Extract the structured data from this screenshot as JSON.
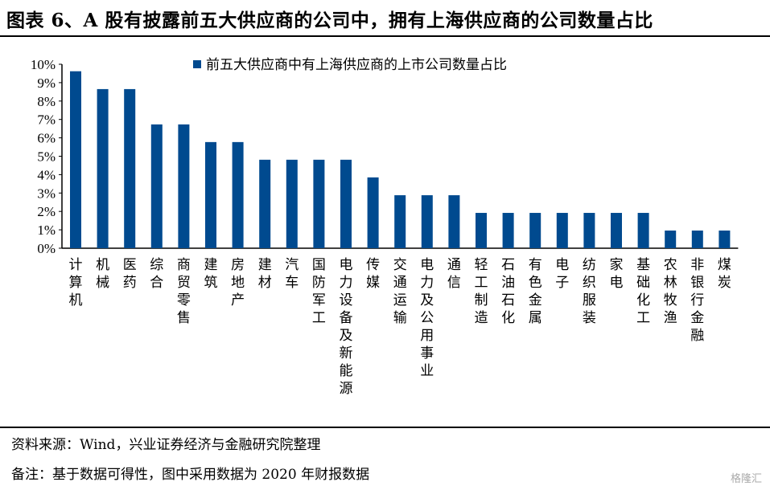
{
  "title": "图表 6、A 股有披露前五大供应商的公司中，拥有上海供应商的公司数量占比",
  "source": "资料来源：Wind，兴业证券经济与金融研究院整理",
  "note": "备注：基于数据可得性，图中采用数据为 2020 年财报数据",
  "watermark": "格隆汇",
  "chart_data": {
    "type": "bar",
    "title": "",
    "xlabel": "",
    "ylabel": "",
    "ylim": [
      0,
      10
    ],
    "yticks": [
      "0%",
      "1%",
      "2%",
      "3%",
      "4%",
      "5%",
      "6%",
      "7%",
      "8%",
      "9%",
      "10%"
    ],
    "grid": false,
    "legend_position": "top",
    "color": "#004a8f",
    "categories": [
      "计算机",
      "机械",
      "医药",
      "综合",
      "商贸零售",
      "建筑",
      "房地产",
      "建材",
      "汽车",
      "国防军工",
      "电力设备及新能源",
      "传媒",
      "交通运输",
      "电力及公用事业",
      "通信",
      "轻工制造",
      "石油石化",
      "有色金属",
      "电子",
      "纺织服装",
      "家电",
      "基础化工",
      "农林牧渔",
      "非银行金融",
      "煤炭"
    ],
    "series": [
      {
        "name": "前五大供应商中有上海供应商的上市公司数量占比",
        "values": [
          9.62,
          8.65,
          8.65,
          6.73,
          6.73,
          5.77,
          5.77,
          4.81,
          4.81,
          4.81,
          4.81,
          3.85,
          2.88,
          2.88,
          2.88,
          1.92,
          1.92,
          1.92,
          1.92,
          1.92,
          1.92,
          1.92,
          0.96,
          0.96,
          0.96
        ]
      }
    ]
  }
}
